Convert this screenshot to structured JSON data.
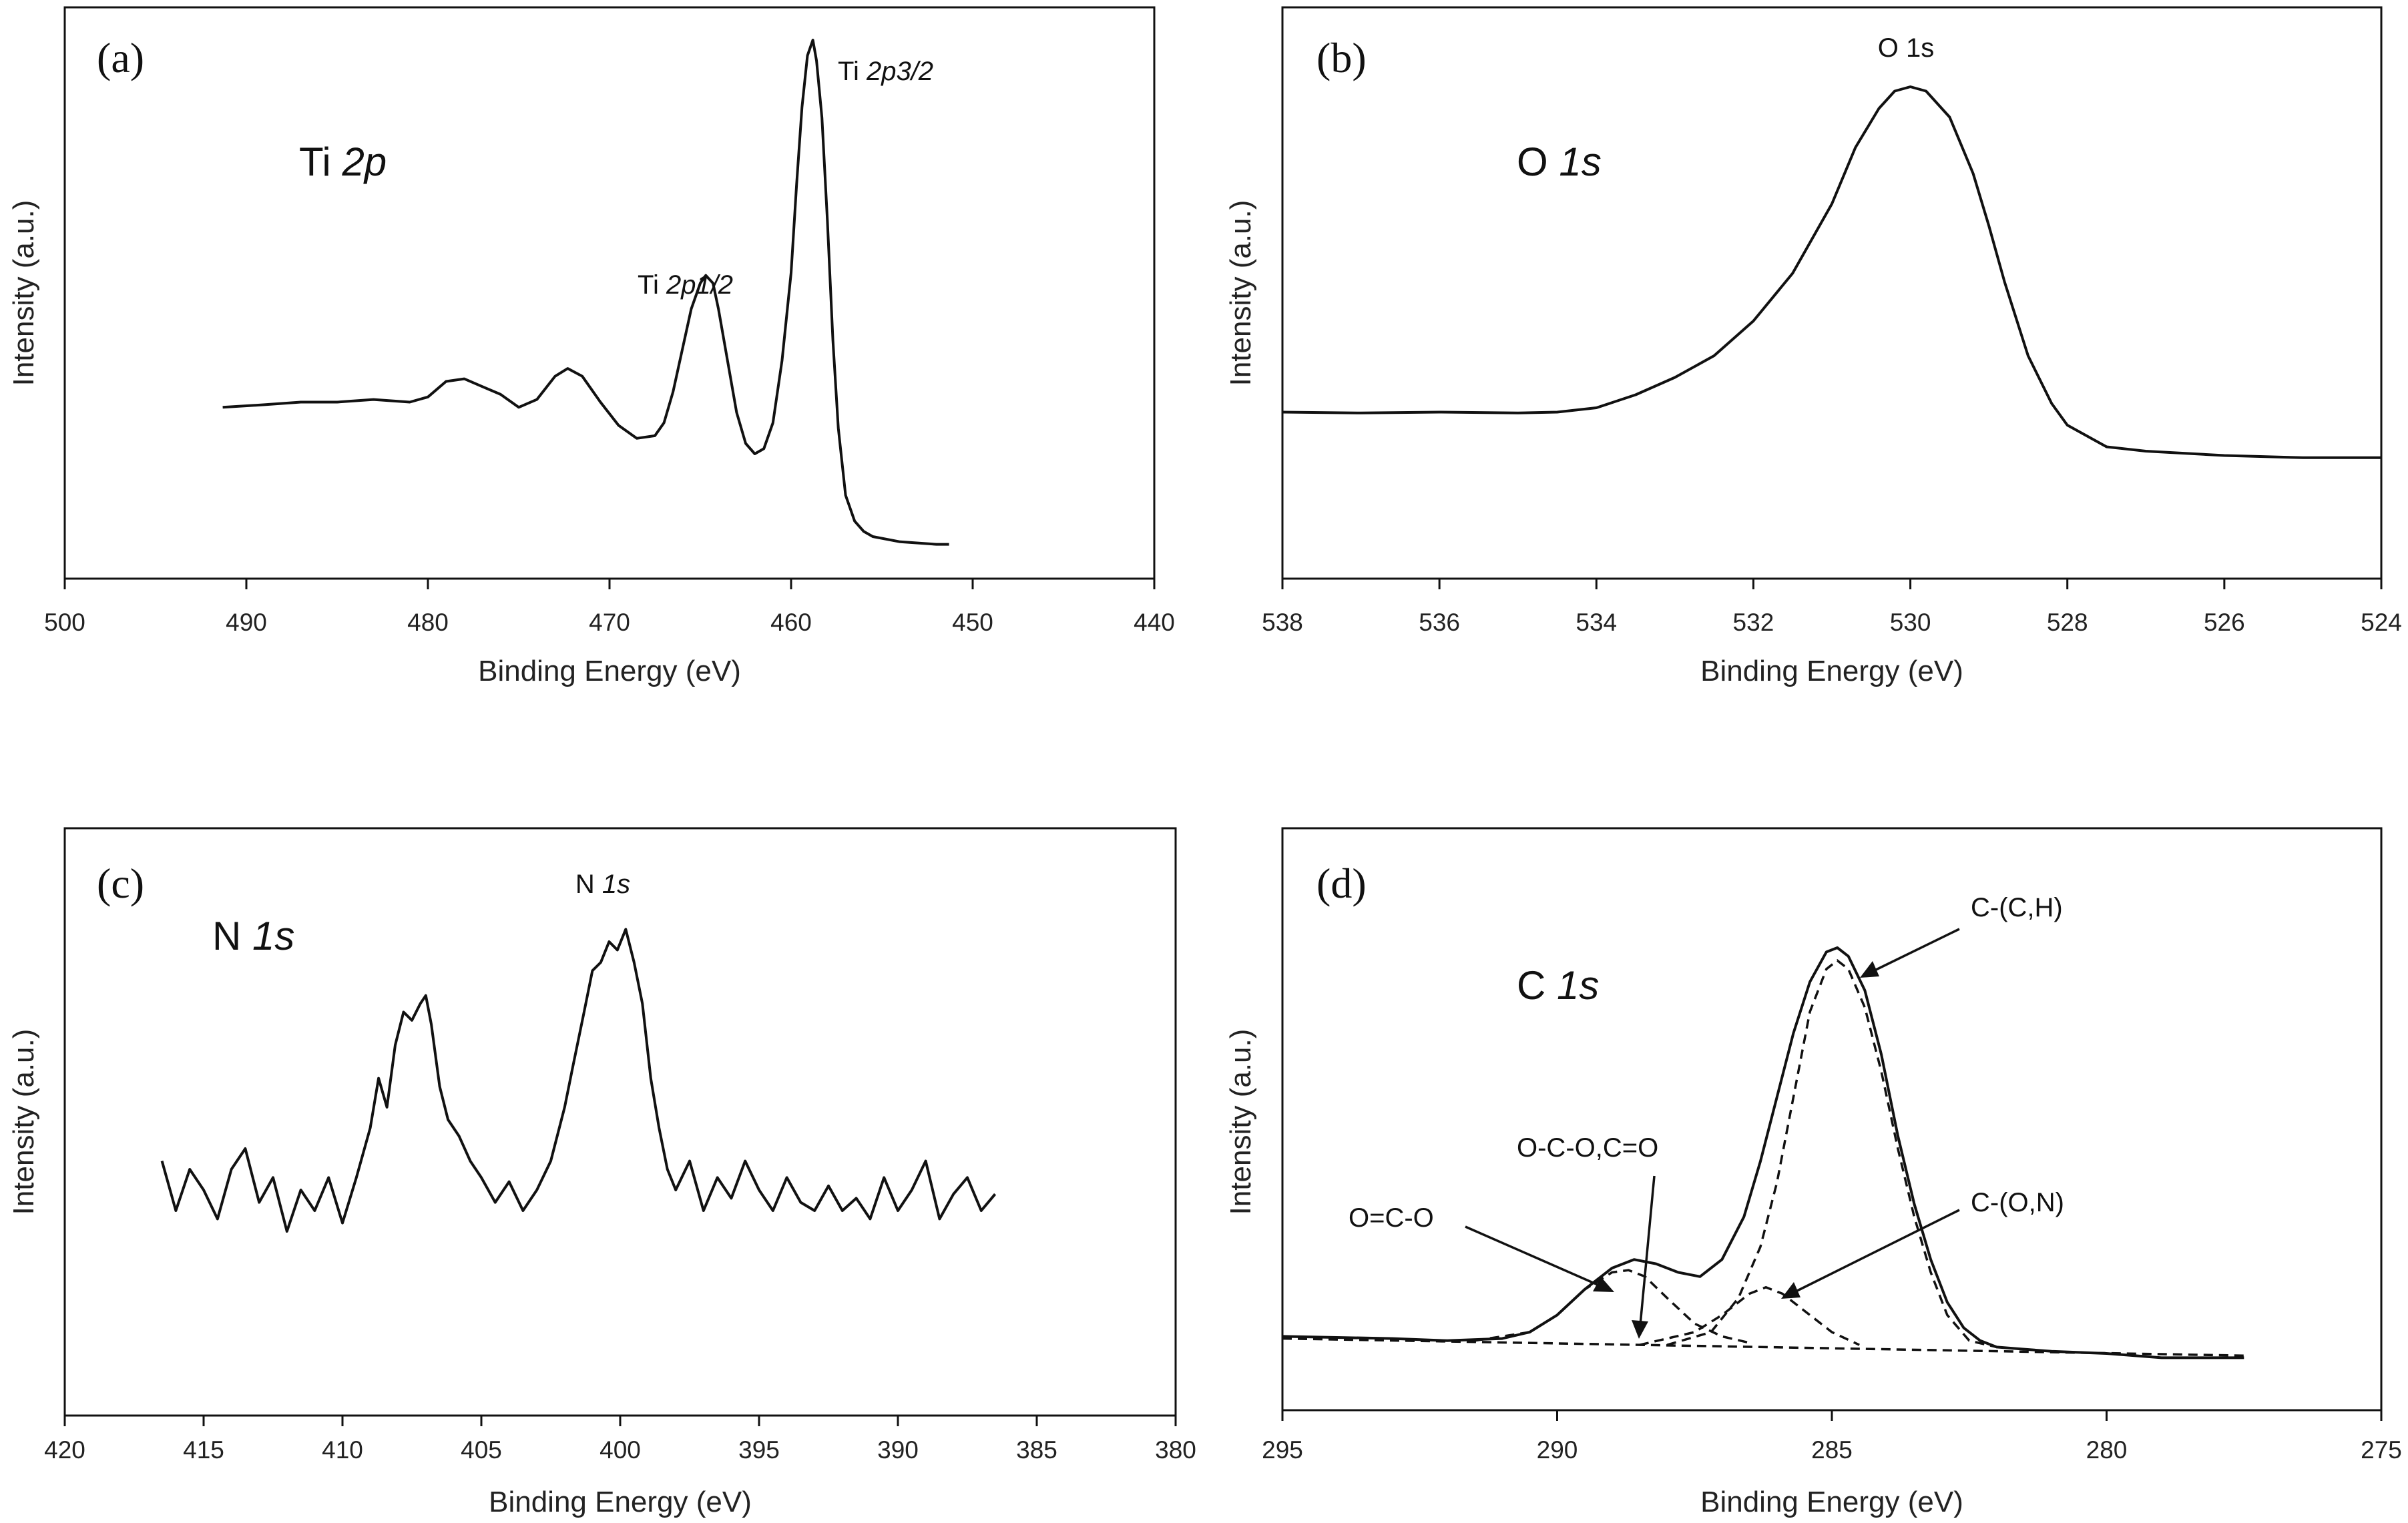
{
  "chart_data": [
    {
      "id": "a",
      "type": "line",
      "panel_label": "(a)",
      "species": {
        "plain": "Ti ",
        "italic": "2p"
      },
      "xlabel": "Binding Energy (eV)",
      "ylabel": "Intensity (a.u.)",
      "xlim": [
        500,
        440
      ],
      "xticks": [
        500,
        490,
        480,
        470,
        460,
        450,
        440
      ],
      "ylim": [
        0,
        1
      ],
      "series": [
        {
          "name": "Ti 2p spectrum",
          "x": [
            491.3,
            489,
            487,
            485,
            483,
            481,
            480,
            479,
            478,
            477,
            476,
            475,
            474,
            473,
            472.3,
            471.5,
            470.5,
            469.5,
            468.5,
            467.5,
            467,
            466.5,
            466,
            465.5,
            465,
            464.7,
            464.3,
            464,
            463.5,
            463,
            462.5,
            462,
            461.5,
            461,
            460.5,
            460,
            459.7,
            459.4,
            459.1,
            458.8,
            458.6,
            458.3,
            458,
            457.7,
            457.4,
            457,
            456.5,
            456,
            455.5,
            454,
            452,
            451.3
          ],
          "y": [
            0.29,
            0.295,
            0.3,
            0.3,
            0.305,
            0.3,
            0.31,
            0.34,
            0.345,
            0.33,
            0.315,
            0.29,
            0.305,
            0.35,
            0.365,
            0.35,
            0.3,
            0.255,
            0.23,
            0.235,
            0.26,
            0.32,
            0.4,
            0.48,
            0.53,
            0.545,
            0.53,
            0.48,
            0.38,
            0.28,
            0.22,
            0.2,
            0.21,
            0.26,
            0.38,
            0.55,
            0.72,
            0.87,
            0.97,
            1.0,
            0.96,
            0.85,
            0.65,
            0.42,
            0.25,
            0.12,
            0.07,
            0.05,
            0.04,
            0.03,
            0.025,
            0.025
          ]
        }
      ],
      "annotations": [
        {
          "plain": "Ti ",
          "italic": "2p1/2",
          "at_x": 464.5
        },
        {
          "plain": "Ti ",
          "italic": "2p3/2",
          "at_x": 458.6
        }
      ]
    },
    {
      "id": "b",
      "type": "line",
      "panel_label": "(b)",
      "species": {
        "plain": "O ",
        "italic": "1s"
      },
      "xlabel": "Binding Energy (eV)",
      "ylabel": "Intensity (a.u.)",
      "xlim": [
        538,
        524
      ],
      "xticks": [
        538,
        536,
        534,
        532,
        530,
        528,
        526,
        524
      ],
      "ylim": [
        0,
        1
      ],
      "series": [
        {
          "name": "O 1s spectrum",
          "x": [
            538,
            537,
            536,
            535,
            534.5,
            534,
            533.5,
            533,
            532.5,
            532,
            531.5,
            531,
            530.7,
            530.4,
            530.2,
            530,
            529.8,
            529.5,
            529.2,
            529,
            528.8,
            528.5,
            528.2,
            528,
            527.5,
            527,
            526,
            525,
            524
          ],
          "y": [
            0.25,
            0.248,
            0.25,
            0.248,
            0.25,
            0.26,
            0.29,
            0.33,
            0.38,
            0.46,
            0.57,
            0.73,
            0.86,
            0.95,
            0.99,
            1.0,
            0.99,
            0.93,
            0.8,
            0.68,
            0.55,
            0.38,
            0.27,
            0.22,
            0.17,
            0.16,
            0.15,
            0.145,
            0.145
          ]
        }
      ],
      "annotations": [
        {
          "plain": "O 1s",
          "italic": "",
          "at_x": 530
        }
      ]
    },
    {
      "id": "c",
      "type": "line",
      "panel_label": "(c)",
      "species": {
        "plain": "N ",
        "italic": "1s"
      },
      "xlabel": "Binding Energy (eV)",
      "ylabel": "Intensity (a.u.)",
      "xlim": [
        420,
        380
      ],
      "xticks": [
        420,
        415,
        410,
        405,
        400,
        395,
        390,
        385,
        380
      ],
      "ylim": [
        0,
        1
      ],
      "series": [
        {
          "name": "N 1s spectrum",
          "x": [
            416.5,
            416,
            415.5,
            415,
            414.5,
            414,
            413.5,
            413,
            412.5,
            412,
            411.5,
            411,
            410.5,
            410,
            409.5,
            409,
            408.7,
            408.4,
            408.1,
            407.8,
            407.5,
            407.2,
            407,
            406.8,
            406.5,
            406.2,
            405.8,
            405.4,
            405,
            404.5,
            404,
            403.5,
            403,
            402.5,
            402,
            401.7,
            401.3,
            401,
            400.7,
            400.4,
            400.1,
            399.8,
            399.5,
            399.2,
            398.9,
            398.6,
            398.3,
            398,
            397.5,
            397,
            396.5,
            396,
            395.5,
            395,
            394.5,
            394,
            393.5,
            393,
            392.5,
            392,
            391.5,
            391,
            390.5,
            390,
            389.5,
            389,
            388.5,
            388,
            387.5,
            387,
            386.5
          ],
          "y": [
            0.42,
            0.3,
            0.4,
            0.35,
            0.28,
            0.4,
            0.45,
            0.32,
            0.38,
            0.25,
            0.35,
            0.3,
            0.38,
            0.27,
            0.38,
            0.5,
            0.62,
            0.55,
            0.7,
            0.78,
            0.76,
            0.8,
            0.82,
            0.75,
            0.6,
            0.52,
            0.48,
            0.42,
            0.38,
            0.32,
            0.37,
            0.3,
            0.35,
            0.42,
            0.55,
            0.65,
            0.78,
            0.88,
            0.9,
            0.95,
            0.93,
            0.98,
            0.9,
            0.8,
            0.62,
            0.5,
            0.4,
            0.35,
            0.42,
            0.3,
            0.38,
            0.33,
            0.42,
            0.35,
            0.3,
            0.38,
            0.32,
            0.3,
            0.36,
            0.3,
            0.33,
            0.28,
            0.38,
            0.3,
            0.35,
            0.42,
            0.28,
            0.34,
            0.38,
            0.3,
            0.34
          ]
        }
      ],
      "annotations": [
        {
          "plain": "N ",
          "italic": "1s",
          "at_x": 400.5
        }
      ]
    },
    {
      "id": "d",
      "type": "line",
      "panel_label": "(d)",
      "species": {
        "plain": "C ",
        "italic": "1s"
      },
      "xlabel": "Binding Energy (eV)",
      "ylabel": "Intensity (a.u.)",
      "xlim": [
        295,
        275
      ],
      "xticks": [
        295,
        290,
        285,
        280,
        275
      ],
      "ylim": [
        0,
        1
      ],
      "series": [
        {
          "name": "C 1s spectrum",
          "style": "solid",
          "x": [
            295,
            293,
            292,
            291,
            290.5,
            290,
            289.5,
            289,
            288.6,
            288.2,
            287.8,
            287.4,
            287,
            286.6,
            286.3,
            286,
            285.7,
            285.4,
            285.1,
            284.9,
            284.7,
            284.4,
            284.1,
            283.8,
            283.5,
            283.2,
            282.9,
            282.6,
            282.3,
            282,
            281.5,
            281,
            280,
            279,
            278,
            277.5
          ],
          "y": [
            0.09,
            0.085,
            0.08,
            0.085,
            0.1,
            0.14,
            0.2,
            0.25,
            0.27,
            0.26,
            0.24,
            0.23,
            0.27,
            0.37,
            0.5,
            0.65,
            0.8,
            0.92,
            0.99,
            1.0,
            0.98,
            0.9,
            0.75,
            0.56,
            0.4,
            0.27,
            0.17,
            0.11,
            0.08,
            0.065,
            0.06,
            0.055,
            0.05,
            0.04,
            0.04,
            0.04
          ]
        },
        {
          "name": "baseline",
          "style": "dashed",
          "x": [
            295,
            277.5
          ],
          "y": [
            0.085,
            0.045
          ]
        },
        {
          "name": "O=C-O component",
          "style": "dashed",
          "x": [
            291.5,
            290.5,
            290,
            289.5,
            289,
            288.7,
            288.4,
            288,
            287.5,
            287,
            286.5
          ],
          "y": [
            0.08,
            0.1,
            0.14,
            0.2,
            0.24,
            0.245,
            0.23,
            0.18,
            0.12,
            0.09,
            0.075
          ]
        },
        {
          "name": "C-(O,N) component",
          "style": "dashed",
          "x": [
            288.5,
            287.5,
            287,
            286.5,
            286.2,
            285.9,
            285.5,
            285,
            284.5
          ],
          "y": [
            0.07,
            0.1,
            0.14,
            0.19,
            0.205,
            0.19,
            0.15,
            0.1,
            0.07
          ]
        },
        {
          "name": "C-(C,H) component",
          "style": "dashed",
          "x": [
            288,
            287.2,
            286.7,
            286.3,
            286,
            285.7,
            285.4,
            285.1,
            284.9,
            284.7,
            284.4,
            284.1,
            283.8,
            283.5,
            283.2,
            282.9,
            282.5,
            282
          ],
          "y": [
            0.07,
            0.1,
            0.18,
            0.3,
            0.45,
            0.65,
            0.85,
            0.95,
            0.97,
            0.95,
            0.86,
            0.71,
            0.53,
            0.37,
            0.24,
            0.14,
            0.08,
            0.065
          ]
        }
      ],
      "annotations": [
        {
          "plain": "O=C-O",
          "italic": ""
        },
        {
          "plain": "O-C-O,C=O",
          "italic": ""
        },
        {
          "plain": "C-(C,H)",
          "italic": ""
        },
        {
          "plain": "C-(O,N)",
          "italic": ""
        }
      ]
    }
  ]
}
